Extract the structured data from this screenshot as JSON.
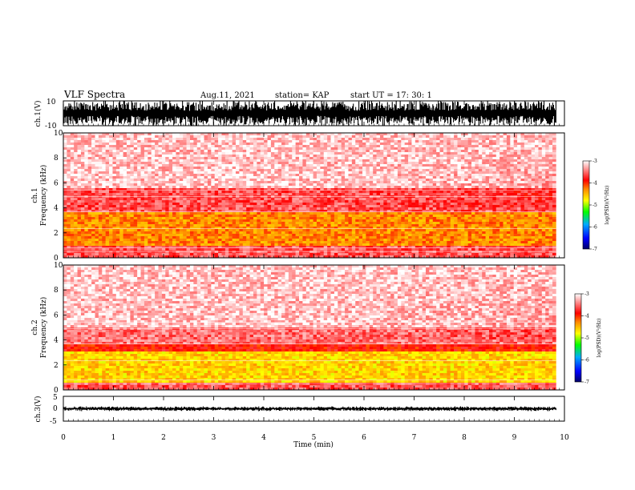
{
  "header": {
    "title": "VLF Spectra",
    "date": "Aug.11, 2021",
    "station": "station= KAP",
    "start": "start UT =  17: 30: 1"
  },
  "chart_data": [
    {
      "type": "line",
      "panel": "ch1-waveform",
      "ylabel": "ch.1(V)",
      "ylim": [
        -10,
        10
      ],
      "yticks": [
        "10",
        "-10"
      ],
      "series": [
        {
          "values_description": "dense noisy waveform spanning roughly -10 to 10 V",
          "approx_range": [
            -10,
            10
          ]
        }
      ]
    },
    {
      "type": "heatmap",
      "panel": "ch1-spectrogram",
      "ylabel": "ch.1\nFrequency (kHz)",
      "ylim": [
        0,
        10
      ],
      "yticks": [
        "10",
        "8",
        "6",
        "4",
        "2",
        "0"
      ],
      "xlim": [
        0,
        10
      ],
      "bands": [
        {
          "from": 0,
          "to": 1,
          "level": -3.6
        },
        {
          "from": 1,
          "to": 3.6,
          "level": -4.3
        },
        {
          "from": 3.6,
          "to": 5.5,
          "level": -3.6
        },
        {
          "from": 5.5,
          "to": 10,
          "level": -3.2
        }
      ],
      "colorbar": {
        "min": -7,
        "max": -3,
        "ticks": [
          "-3",
          "-4",
          "-5",
          "-6",
          "-7"
        ],
        "label": "log(PSD)(V²/Hz)"
      }
    },
    {
      "type": "heatmap",
      "panel": "ch2-spectrogram",
      "ylabel": "ch.2\nFrequency (kHz)",
      "ylim": [
        0,
        10
      ],
      "yticks": [
        "10",
        "8",
        "6",
        "4",
        "2",
        "0"
      ],
      "xlim": [
        0,
        10
      ],
      "bands": [
        {
          "from": 0,
          "to": 0.6,
          "level": -3.6
        },
        {
          "from": 0.6,
          "to": 3.0,
          "level": -4.6
        },
        {
          "from": 3.0,
          "to": 3.6,
          "level": -3.9
        },
        {
          "from": 3.6,
          "to": 5.0,
          "level": -3.5
        },
        {
          "from": 5.0,
          "to": 10,
          "level": -3.2
        }
      ],
      "colorbar": {
        "min": -7,
        "max": -3,
        "ticks": [
          "-3",
          "-4",
          "-5",
          "-6",
          "-7"
        ],
        "label": "log(PSD)(V²/Hz)"
      }
    },
    {
      "type": "line",
      "panel": "ch3-waveform",
      "ylabel": "ch.3(V)",
      "ylim": [
        -5,
        5
      ],
      "yticks": [
        "5",
        "0",
        "-5"
      ],
      "series": [
        {
          "values_description": "narrow waveform centered near 0 V",
          "approx_range": [
            -0.8,
            0.8
          ]
        }
      ]
    }
  ],
  "xaxis": {
    "label": "Time (min)",
    "range": [
      0,
      10
    ],
    "data_end": 9.83,
    "ticks": [
      "0",
      "1",
      "2",
      "3",
      "4",
      "5",
      "6",
      "7",
      "8",
      "9",
      "10"
    ]
  },
  "colors": {
    "axis": "#000000",
    "colormap": [
      "#000066",
      "#0000ff",
      "#00aaff",
      "#00ff00",
      "#ffff00",
      "#ff8800",
      "#ff0000",
      "#ffffff"
    ]
  }
}
